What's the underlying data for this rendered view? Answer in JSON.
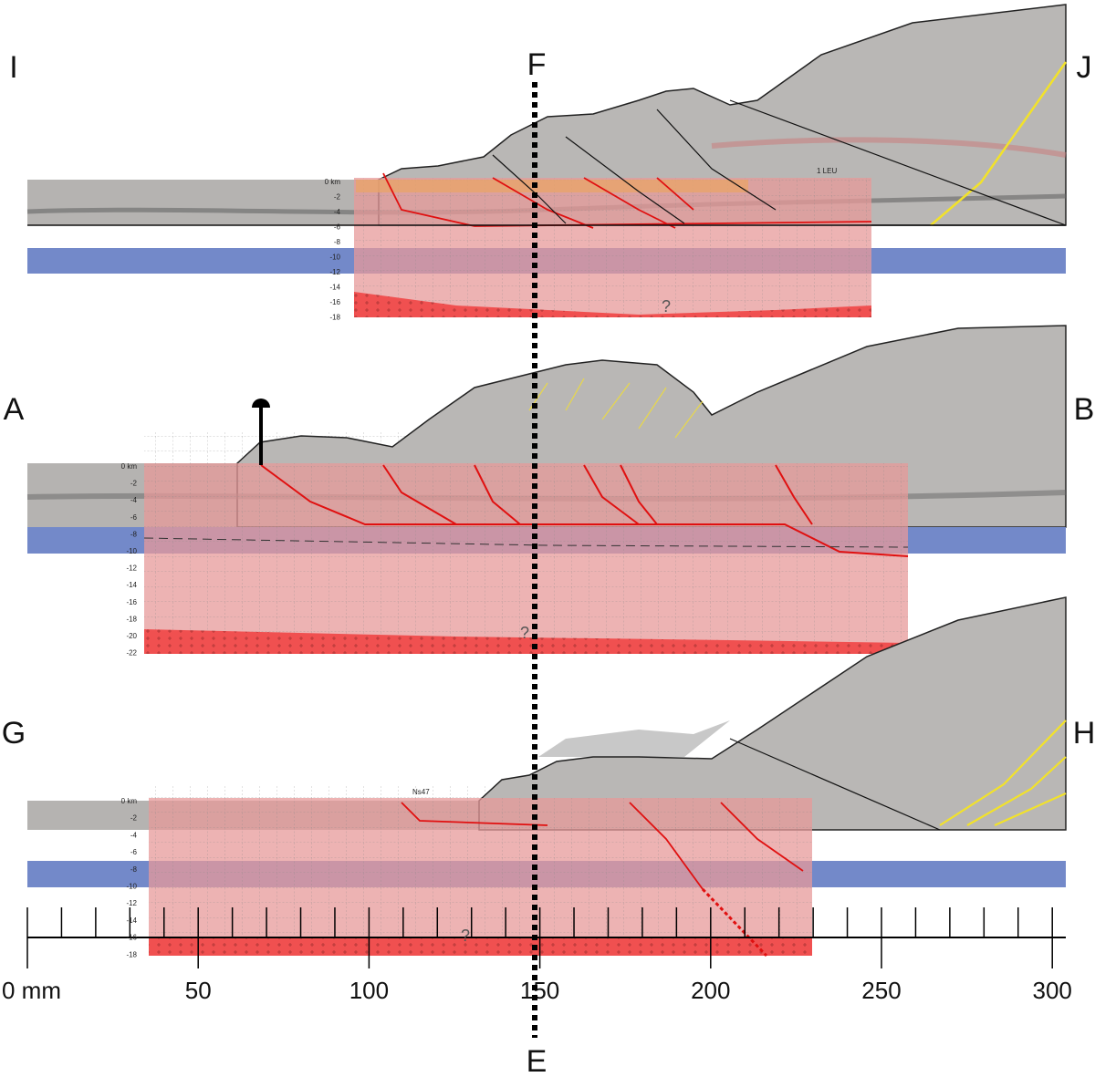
{
  "sections": [
    {
      "left": "I",
      "right": "J",
      "well": "1 LEU",
      "query": "?",
      "depth_labels": [
        "0 km",
        "-2",
        "-4",
        "-6",
        "-8",
        "-10",
        "-12",
        "-14",
        "-16",
        "-18"
      ]
    },
    {
      "left": "A",
      "right": "B",
      "query": "?",
      "depth_labels": [
        "0 km",
        "-2",
        "-4",
        "-6",
        "-8",
        "-10",
        "-12",
        "-14",
        "-16",
        "-18",
        "-20",
        "-22"
      ]
    },
    {
      "left": "G",
      "right": "H",
      "well": "Ns47",
      "query": "?",
      "depth_labels": [
        "0 km",
        "-2",
        "-4",
        "-6",
        "-8",
        "-10",
        "-12",
        "-14",
        "-16",
        "-18"
      ]
    }
  ],
  "section_line": {
    "top": "F",
    "bottom": "E"
  },
  "scale": {
    "labels": [
      "0 mm",
      "50",
      "100",
      "150",
      "200",
      "250",
      "300"
    ]
  }
}
